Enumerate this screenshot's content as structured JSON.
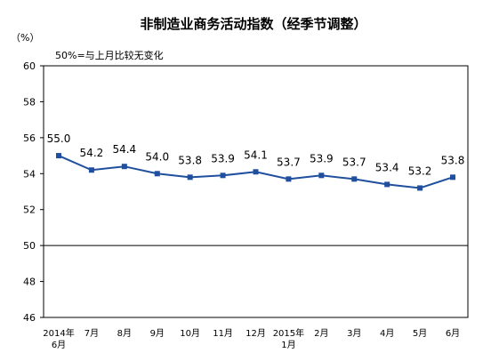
{
  "chart_data": {
    "type": "line",
    "title": "非制造业商务活动指数（经季节调整）",
    "ylabel": "（%）",
    "note": "50%=与上月比较无变化",
    "categories": [
      [
        "2014年",
        "6月"
      ],
      [
        "7月"
      ],
      [
        "8月"
      ],
      [
        "9月"
      ],
      [
        "10月"
      ],
      [
        "11月"
      ],
      [
        "12月"
      ],
      [
        "2015年",
        "1月"
      ],
      [
        "2月"
      ],
      [
        "3月"
      ],
      [
        "4月"
      ],
      [
        "5月"
      ],
      [
        "6月"
      ]
    ],
    "values": [
      55.0,
      54.2,
      54.4,
      54.0,
      53.8,
      53.9,
      54.1,
      53.7,
      53.9,
      53.7,
      53.4,
      53.2,
      53.8
    ],
    "data_labels": [
      "55.0",
      "54.2",
      "54.4",
      "54.0",
      "53.8",
      "53.9",
      "54.1",
      "53.7",
      "53.9",
      "53.7",
      "53.4",
      "53.2",
      "53.8"
    ],
    "ylim": [
      46,
      60
    ],
    "yticks": [
      "60",
      "58",
      "56",
      "54",
      "52",
      "50",
      "48",
      "46"
    ],
    "reference_line": 50,
    "grid": false,
    "line_color": "#1f4f9e"
  }
}
